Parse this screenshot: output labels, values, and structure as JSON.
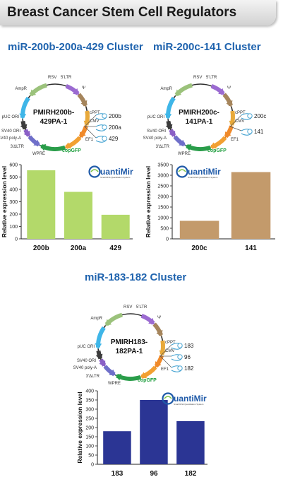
{
  "page": {
    "title": "Breast Cancer Stem Cell Regulators"
  },
  "colors": {
    "title_blue": "#1f63ae",
    "bar_green": "#b3d96a",
    "bar_tan": "#c39a6b",
    "bar_navy": "#2b3594"
  },
  "logo": {
    "name": "QuantiMir",
    "tagline": "Small RNA Quantitation System"
  },
  "plasmid_features": {
    "rsv": "RSV",
    "ltr5": "5'LTR",
    "psi": "Ψ",
    "cppt": "cPPT",
    "cmv": "CMV",
    "ef1": "EF1",
    "copgfp": "copGFP",
    "wpre": "WPRE",
    "ltr3": "3'ΔLTR",
    "sv40polya": "SV40 poly-A",
    "sv40ori": "SV40 ORI",
    "puc": "pUC ORI",
    "ampr": "AmpR"
  },
  "clusters": [
    {
      "title": "miR-200b-200a-429 Cluster",
      "plasmid_name_line1": "PMIRH200b-",
      "plasmid_name_line2": "429PA-1",
      "mirnas": [
        "200b",
        "200a",
        "429"
      ],
      "chart_data": {
        "type": "bar",
        "categories": [
          "200b",
          "200a",
          "429"
        ],
        "values": [
          555,
          380,
          195
        ],
        "ylabel": "Relative expression level",
        "ylim": [
          0,
          600
        ],
        "yticks": [
          0,
          100,
          200,
          300,
          400,
          500,
          600
        ],
        "color": "#b3d96a"
      }
    },
    {
      "title": "miR-200c-141 Cluster",
      "plasmid_name_line1": "PMIRH200c-",
      "plasmid_name_line2": "141PA-1",
      "mirnas": [
        "200c",
        "141"
      ],
      "chart_data": {
        "type": "bar",
        "categories": [
          "200c",
          "141"
        ],
        "values": [
          850,
          3150
        ],
        "ylabel": "Relative expression level",
        "ylim": [
          0,
          3500
        ],
        "yticks": [
          0,
          500,
          1000,
          1500,
          2000,
          2500,
          3000,
          3500
        ],
        "color": "#c39a6b"
      }
    },
    {
      "title": "miR-183-182 Cluster",
      "plasmid_name_line1": "PMIRH183-",
      "plasmid_name_line2": "182PA-1",
      "mirnas": [
        "183",
        "96",
        "182"
      ],
      "chart_data": {
        "type": "bar",
        "categories": [
          "183",
          "96",
          "182"
        ],
        "values": [
          180,
          350,
          235
        ],
        "ylabel": "Relative expression level",
        "ylim": [
          0,
          400
        ],
        "yticks": [
          0,
          50,
          100,
          150,
          200,
          250,
          300,
          350,
          400
        ],
        "color": "#2b3594"
      }
    }
  ]
}
